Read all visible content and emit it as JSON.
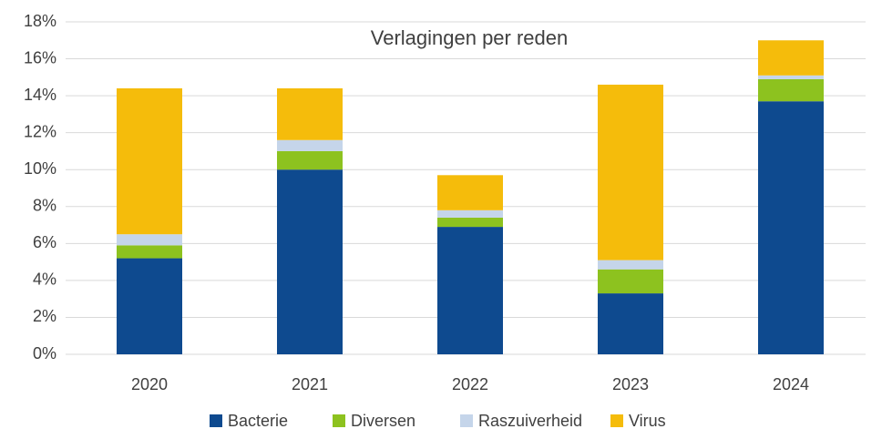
{
  "chart_data": {
    "type": "stacked_bar",
    "title": "Verlagingen per reden",
    "categories": [
      "2020",
      "2021",
      "2022",
      "2023",
      "2024"
    ],
    "series": [
      {
        "name": "Bacterie",
        "color": "#0e4a8f",
        "values": [
          5.2,
          10.0,
          6.9,
          3.3,
          13.7
        ]
      },
      {
        "name": "Diversen",
        "color": "#8dc21f",
        "values": [
          0.7,
          1.0,
          0.5,
          1.3,
          1.2
        ]
      },
      {
        "name": "Raszuiverheid",
        "color": "#c5d5ea",
        "values": [
          0.6,
          0.6,
          0.4,
          0.5,
          0.2
        ]
      },
      {
        "name": "Virus",
        "color": "#f5bc0b",
        "values": [
          7.9,
          2.8,
          1.9,
          9.5,
          1.9
        ]
      }
    ],
    "ylim": [
      0,
      18
    ],
    "yticks": [
      {
        "value": 0,
        "label": "0%"
      },
      {
        "value": 2,
        "label": "2%"
      },
      {
        "value": 4,
        "label": "4%"
      },
      {
        "value": 6,
        "label": "6%"
      },
      {
        "value": 8,
        "label": "8%"
      },
      {
        "value": 10,
        "label": "10%"
      },
      {
        "value": 12,
        "label": "12%"
      },
      {
        "value": 14,
        "label": "14%"
      },
      {
        "value": 16,
        "label": "16%"
      },
      {
        "value": 18,
        "label": "18%"
      }
    ],
    "grid": true,
    "legend": "bottom"
  }
}
